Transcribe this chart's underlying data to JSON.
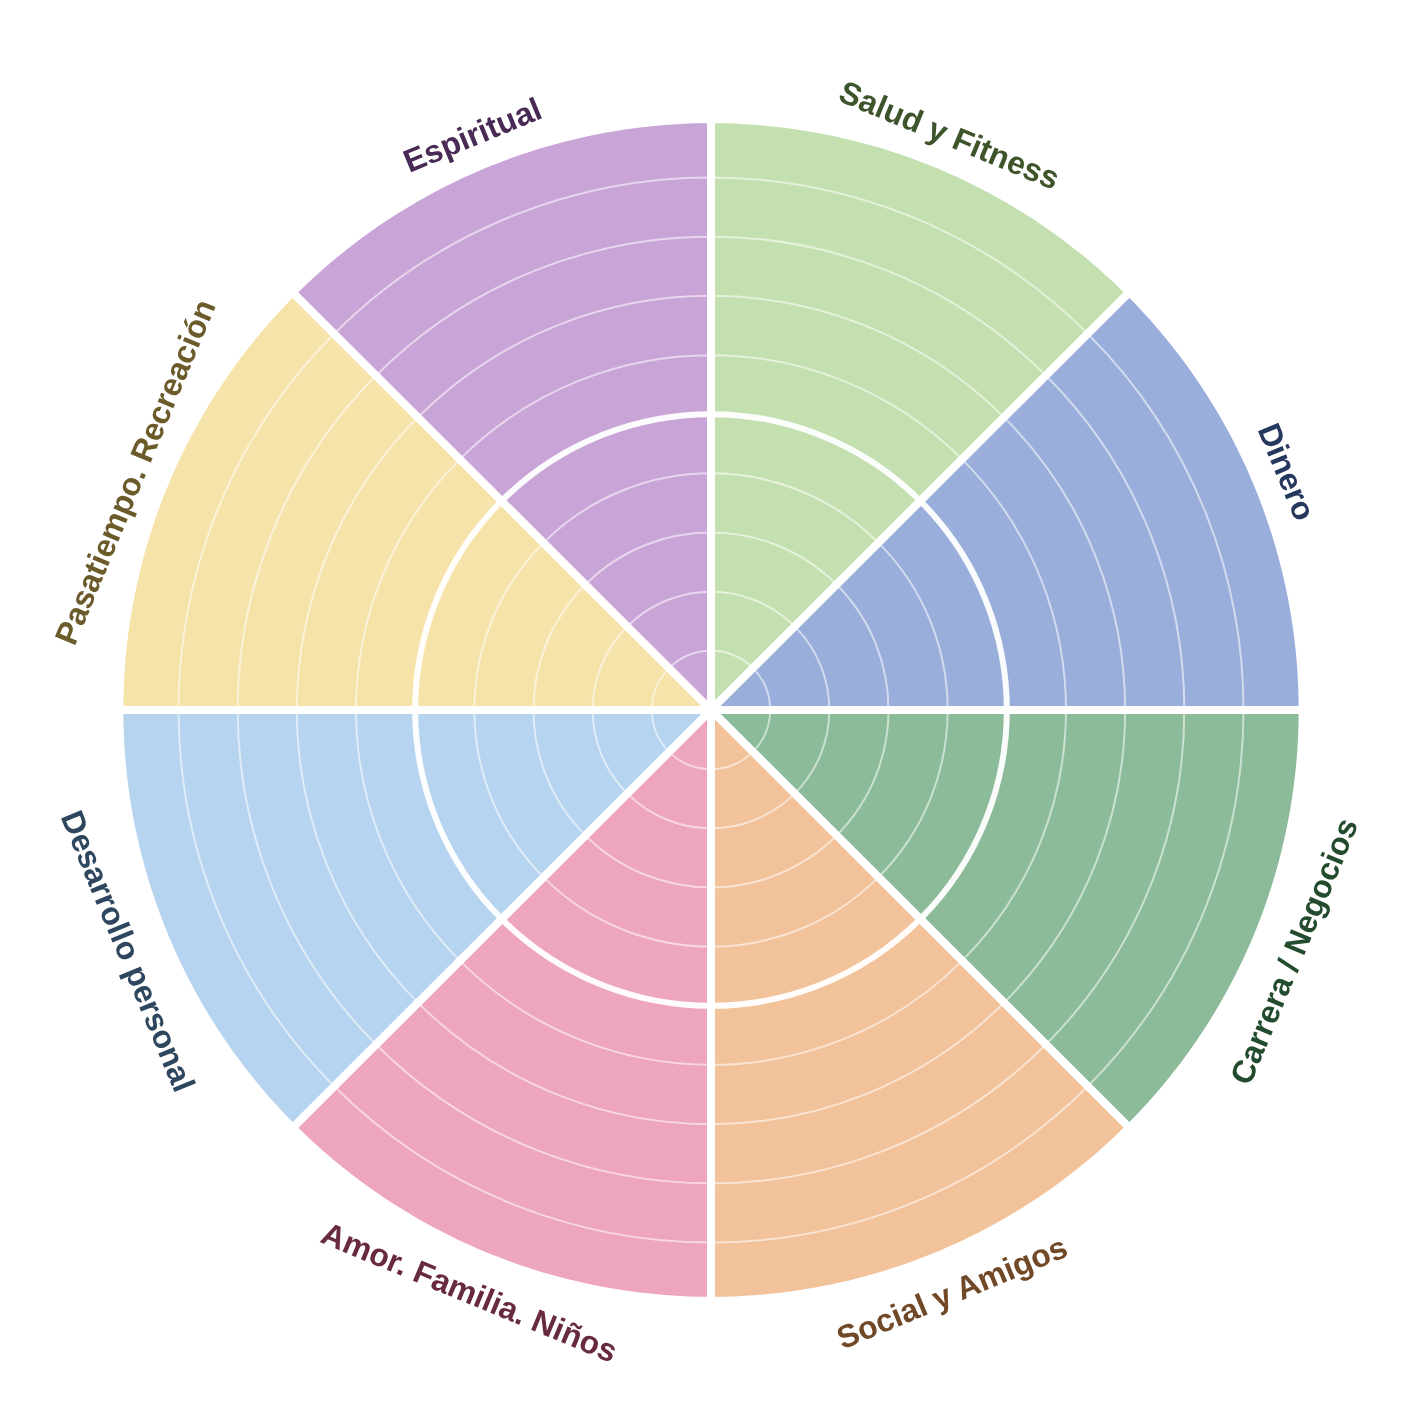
{
  "chart_data": {
    "type": "pie",
    "categories": [
      "Salud y Fitness",
      "Dinero",
      "Carrera / Negocios",
      "Social y Amigos",
      "Amor. Familia. Niños",
      "Desarrollo personal",
      "Pasatiempo. Recreación",
      "Espiritual"
    ],
    "values": [
      12.5,
      12.5,
      12.5,
      12.5,
      12.5,
      12.5,
      12.5,
      12.5
    ],
    "colors": [
      "#c5e0b0",
      "#9aaedb",
      "#8bbb98",
      "#f2c29a",
      "#eea5be",
      "#b6d4ef",
      "#f6e3aa",
      "#c9a5d7"
    ],
    "grid": true
  }
}
